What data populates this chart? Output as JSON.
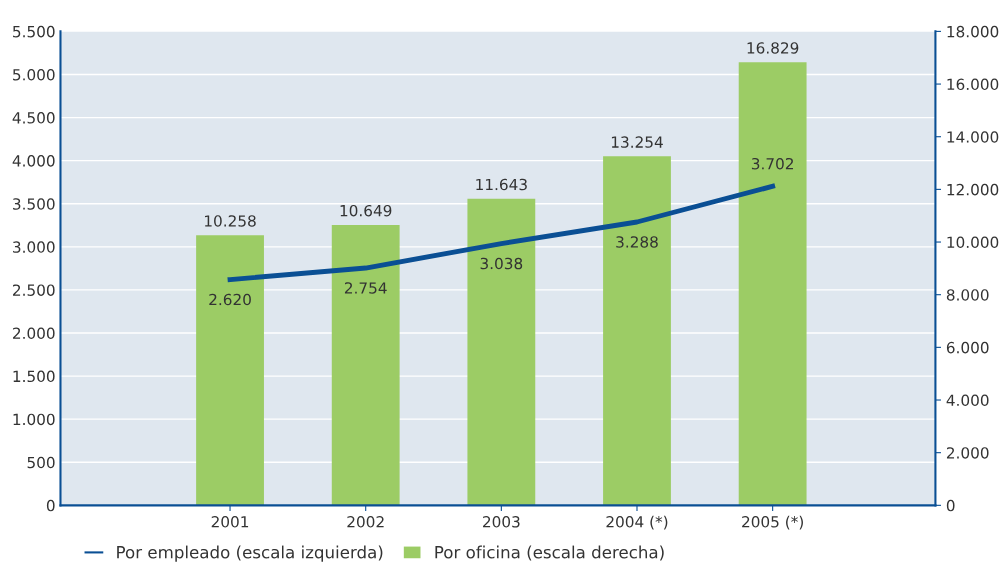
{
  "chart_data": {
    "type": "bar",
    "categories": [
      "2001",
      "2002",
      "2003",
      "2004 (*)",
      "2005 (*)"
    ],
    "series": [
      {
        "name": "Por empleado (escala izquierda)",
        "type": "line",
        "axis": "y",
        "color": "#0a4f94",
        "values": [
          2620,
          2754,
          3038,
          3288,
          3702
        ],
        "value_labels": [
          "2.620",
          "2.754",
          "3.038",
          "3.288",
          "3.702"
        ]
      },
      {
        "name": "Por oficina (escala derecha)",
        "axis": "y2",
        "color": "#9ccc65",
        "values": [
          10258,
          10649,
          11643,
          13254,
          16829
        ],
        "value_labels": [
          "10.258",
          "10.649",
          "11.643",
          "13.254",
          "16.829"
        ]
      }
    ],
    "ylim": [
      0,
      5500
    ],
    "yticks": [
      0,
      {
        "value": 500,
        "label": "500"
      },
      {
        "value": 1000,
        "label": "1.000"
      },
      {
        "value": 1500,
        "label": "1.500"
      },
      {
        "value": 2000,
        "label": "2.000"
      },
      {
        "value": 2500,
        "label": "2.500"
      },
      {
        "value": 3000,
        "label": "3.000"
      },
      {
        "value": 3500,
        "label": "3.500"
      },
      {
        "value": 4000,
        "label": "4.000"
      },
      {
        "value": 4500,
        "label": "4.500"
      },
      {
        "value": 5000,
        "label": "5.000"
      },
      {
        "value": 5500,
        "label": "5.500"
      }
    ],
    "y2lim": [
      0,
      18000
    ],
    "y2ticks": [
      0,
      {
        "value": 2000,
        "label": "2.000"
      },
      {
        "value": 4000,
        "label": "4.000"
      },
      {
        "value": 6000,
        "label": "6.000"
      },
      {
        "value": 8000,
        "label": "8.000"
      },
      {
        "value": 10000,
        "label": "10.000"
      },
      {
        "value": 12000,
        "label": "12.000"
      },
      {
        "value": 14000,
        "label": "14.000"
      },
      {
        "value": 16000,
        "label": "16.000"
      },
      {
        "value": 18000,
        "label": "18.000"
      }
    ],
    "grid": "y",
    "legend": "bottom left",
    "marker": "none",
    "line_style": "solid"
  }
}
